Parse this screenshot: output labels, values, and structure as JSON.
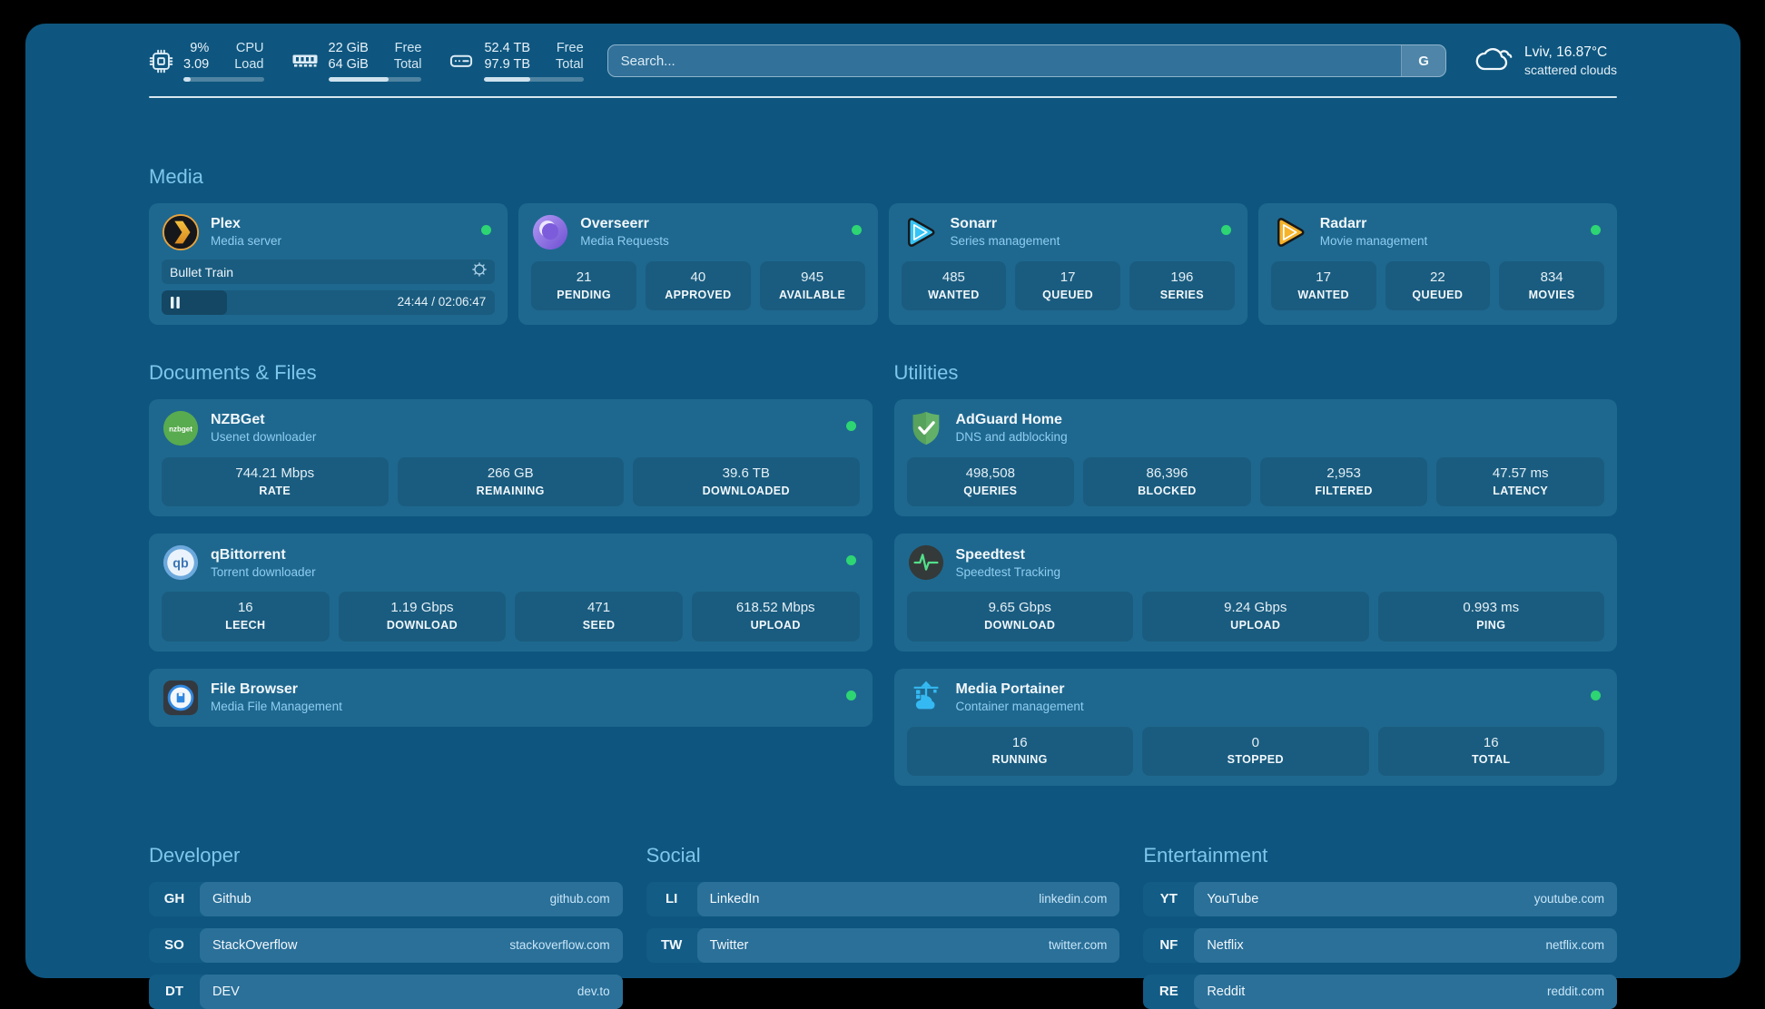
{
  "topbar": {
    "cpu": {
      "icon": "cpu-icon",
      "value_top": "9%",
      "value_bottom": "3.09",
      "label_top": "CPU",
      "label_bottom": "Load",
      "progress_pct": 9
    },
    "ram": {
      "icon": "ram-icon",
      "value_top": "22 GiB",
      "value_bottom": "64 GiB",
      "label_top": "Free",
      "label_bottom": "Total",
      "progress_pct": 65
    },
    "disk": {
      "icon": "disk-icon",
      "value_top": "52.4 TB",
      "value_bottom": "97.9 TB",
      "label_top": "Free",
      "label_bottom": "Total",
      "progress_pct": 46
    },
    "search": {
      "placeholder": "Search...",
      "engine_button": "G"
    },
    "weather": {
      "icon": "cloud-icon",
      "location": "Lviv, 16.87°C",
      "condition": "scattered clouds"
    }
  },
  "sections": {
    "media": {
      "title": "Media",
      "cards": {
        "plex": {
          "icon": "plex-icon",
          "name": "Plex",
          "desc": "Media server",
          "online": true,
          "now_playing": {
            "title": "Bullet Train",
            "time": "24:44 / 02:06:47",
            "progress_pct": 19.5
          }
        },
        "overseerr": {
          "icon": "overseerr-icon",
          "name": "Overseerr",
          "desc": "Media Requests",
          "online": true,
          "stats": [
            {
              "value": "21",
              "label": "PENDING"
            },
            {
              "value": "40",
              "label": "APPROVED"
            },
            {
              "value": "945",
              "label": "AVAILABLE"
            }
          ]
        },
        "sonarr": {
          "icon": "sonarr-icon",
          "name": "Sonarr",
          "desc": "Series management",
          "online": true,
          "stats": [
            {
              "value": "485",
              "label": "WANTED"
            },
            {
              "value": "17",
              "label": "QUEUED"
            },
            {
              "value": "196",
              "label": "SERIES"
            }
          ]
        },
        "radarr": {
          "icon": "radarr-icon",
          "name": "Radarr",
          "desc": "Movie management",
          "online": true,
          "stats": [
            {
              "value": "17",
              "label": "WANTED"
            },
            {
              "value": "22",
              "label": "QUEUED"
            },
            {
              "value": "834",
              "label": "MOVIES"
            }
          ]
        }
      }
    },
    "documents": {
      "title": "Documents & Files",
      "cards": {
        "nzbget": {
          "icon": "nzbget-icon",
          "name": "NZBGet",
          "desc": "Usenet downloader",
          "online": true,
          "stats": [
            {
              "value": "744.21 Mbps",
              "label": "RATE"
            },
            {
              "value": "266 GB",
              "label": "REMAINING"
            },
            {
              "value": "39.6 TB",
              "label": "DOWNLOADED"
            }
          ]
        },
        "qbittorrent": {
          "icon": "qbittorrent-icon",
          "name": "qBittorrent",
          "desc": "Torrent downloader",
          "online": true,
          "stats": [
            {
              "value": "16",
              "label": "LEECH"
            },
            {
              "value": "1.19 Gbps",
              "label": "DOWNLOAD"
            },
            {
              "value": "471",
              "label": "SEED"
            },
            {
              "value": "618.52 Mbps",
              "label": "UPLOAD"
            }
          ]
        },
        "filebrowser": {
          "icon": "filebrowser-icon",
          "name": "File Browser",
          "desc": "Media File Management",
          "online": true
        }
      }
    },
    "utilities": {
      "title": "Utilities",
      "cards": {
        "adguard": {
          "icon": "adguard-icon",
          "name": "AdGuard Home",
          "desc": "DNS and adblocking",
          "stats": [
            {
              "value": "498,508",
              "label": "QUERIES"
            },
            {
              "value": "86,396",
              "label": "BLOCKED"
            },
            {
              "value": "2,953",
              "label": "FILTERED"
            },
            {
              "value": "47.57 ms",
              "label": "LATENCY"
            }
          ]
        },
        "speedtest": {
          "icon": "speedtest-icon",
          "name": "Speedtest",
          "desc": "Speedtest Tracking",
          "stats": [
            {
              "value": "9.65 Gbps",
              "label": "DOWNLOAD"
            },
            {
              "value": "9.24 Gbps",
              "label": "UPLOAD"
            },
            {
              "value": "0.993 ms",
              "label": "PING"
            }
          ]
        },
        "portainer": {
          "icon": "portainer-icon",
          "name": "Media Portainer",
          "desc": "Container management",
          "online": true,
          "stats": [
            {
              "value": "16",
              "label": "RUNNING"
            },
            {
              "value": "0",
              "label": "STOPPED"
            },
            {
              "value": "16",
              "label": "TOTAL"
            }
          ]
        }
      }
    },
    "bookmarks": {
      "developer": {
        "title": "Developer",
        "items": [
          {
            "abbr": "GH",
            "name": "Github",
            "domain": "github.com"
          },
          {
            "abbr": "SO",
            "name": "StackOverflow",
            "domain": "stackoverflow.com"
          },
          {
            "abbr": "DT",
            "name": "DEV",
            "domain": "dev.to"
          }
        ]
      },
      "social": {
        "title": "Social",
        "items": [
          {
            "abbr": "LI",
            "name": "LinkedIn",
            "domain": "linkedin.com"
          },
          {
            "abbr": "TW",
            "name": "Twitter",
            "domain": "twitter.com"
          }
        ]
      },
      "entertainment": {
        "title": "Entertainment",
        "items": [
          {
            "abbr": "YT",
            "name": "YouTube",
            "domain": "youtube.com"
          },
          {
            "abbr": "NF",
            "name": "Netflix",
            "domain": "netflix.com"
          },
          {
            "abbr": "RE",
            "name": "Reddit",
            "domain": "reddit.com"
          }
        ]
      }
    }
  },
  "colors": {
    "background": "#0e567f",
    "card": "#1e688f",
    "accent_green": "#2ed573",
    "section_header": "#7ec6ea"
  }
}
